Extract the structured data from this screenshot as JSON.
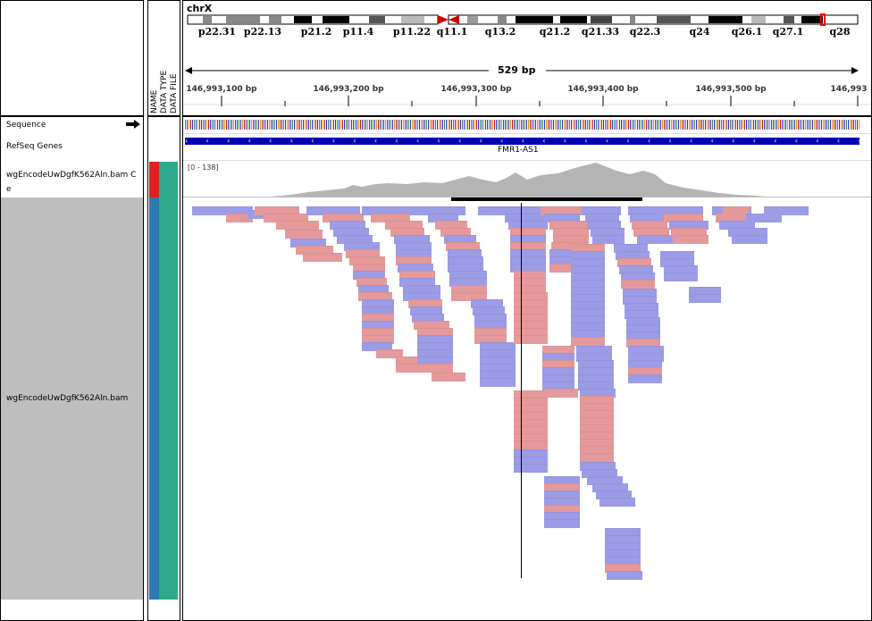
{
  "chromosome": {
    "name": "chrX",
    "bands": [
      "p22.31",
      "p22.13",
      "p21.2",
      "p11.4",
      "p11.22",
      "q11.1",
      "q13.2",
      "q21.2",
      "q21.33",
      "q22.3",
      "q24",
      "q26.1",
      "q27.1",
      "q28"
    ]
  },
  "ruler": {
    "span_label": "529 bp",
    "ticks": [
      "146,993,100 bp",
      "146,993,200 bp",
      "146,993,300 bp",
      "146,993,400 bp",
      "146,993,500 bp",
      "146,993"
    ]
  },
  "attribute_headers": [
    "NAME",
    "DATA TYPE",
    "DATA FILE"
  ],
  "tracks": {
    "sequence": "Sequence",
    "refseq": "RefSeq Genes",
    "coverage": "wgEncodeUwDgfK562Aln.bam C\ne",
    "alignment": "wgEncodeUwDgfK562Aln.bam"
  },
  "gene": {
    "name": "FMR1-AS1"
  },
  "coverage_range": "[0 - 138]",
  "colors": {
    "forward_read": "#e5999a",
    "reverse_read": "#9b9be6",
    "gene": "#0000b2",
    "coverage": "#b4b4b4",
    "attr_name": "#2e7ab0",
    "attr_type": "#2fa98c",
    "attr_selected": "#e02020",
    "selection_gray": "#bebebe"
  }
}
